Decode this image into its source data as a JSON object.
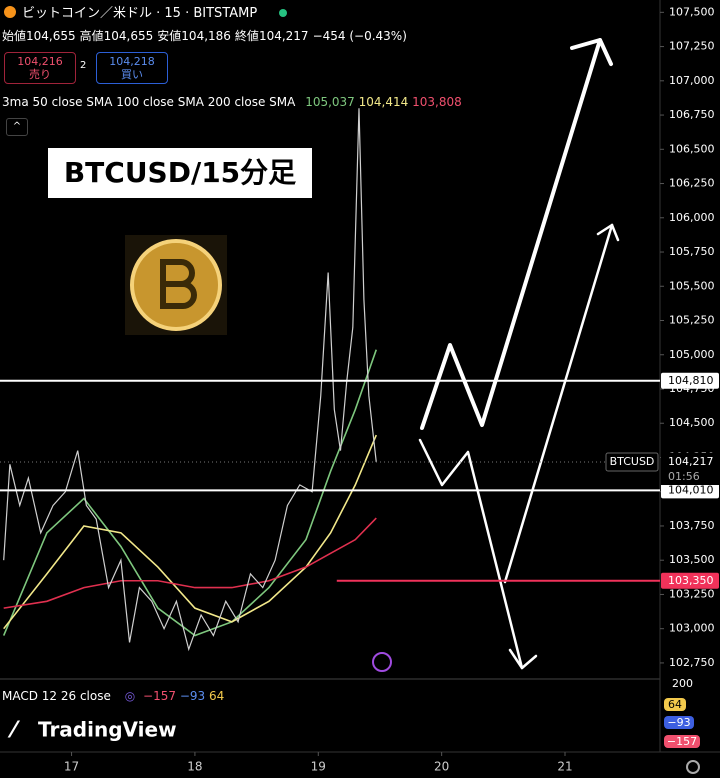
{
  "header": {
    "symbol": "ビットコイン／米ドル · 15 · BITSTAMP",
    "ohlc": [
      {
        "label": "始値",
        "value": "104,655"
      },
      {
        "label": "高値",
        "value": "104,655"
      },
      {
        "label": "安値",
        "value": "104,186"
      },
      {
        "label": "終値",
        "value": "104,217"
      }
    ],
    "change": "−454 (−0.43%)",
    "sell": {
      "price": "104,216",
      "label": "売り"
    },
    "spread": "2",
    "buy": {
      "price": "104,218",
      "label": "買い"
    },
    "indicator": "3ma 50 close SMA 100 close SMA 200 close SMA",
    "indicator_values": [
      "105,037",
      "104,414",
      "103,808"
    ],
    "annotation": "BTCUSD/15分足",
    "macd": {
      "label": "MACD 12 26 close",
      "values": [
        "−157",
        "−93",
        "64"
      ],
      "axis_top": "200"
    },
    "logo": "TradingView"
  },
  "chart_data": {
    "type": "line",
    "x": [
      16.45,
      16.5,
      16.58,
      16.65,
      16.75,
      16.85,
      16.95,
      17.05,
      17.12,
      17.2,
      17.3,
      17.4,
      17.47,
      17.55,
      17.65,
      17.75,
      17.85,
      17.95,
      18.05,
      18.15,
      18.25,
      18.35,
      18.45,
      18.55,
      18.65,
      18.75,
      18.85,
      18.95,
      19.02,
      19.08,
      19.13,
      19.18,
      19.23,
      19.28,
      19.33,
      19.37,
      19.41,
      19.47
    ],
    "values": [
      103500,
      104200,
      103900,
      104100,
      103700,
      103900,
      104000,
      104300,
      103900,
      103800,
      103300,
      103500,
      102900,
      103300,
      103200,
      103000,
      103200,
      102850,
      103100,
      102950,
      103200,
      103050,
      103400,
      103300,
      103500,
      103900,
      104050,
      104000,
      104700,
      105600,
      104600,
      104300,
      104800,
      105200,
      106800,
      105400,
      104700,
      104217
    ],
    "color": "#d0d0d0",
    "series": [
      {
        "name": "SMA 50",
        "color": "#7ec77e",
        "x": [
          16.45,
          16.8,
          17.1,
          17.4,
          17.7,
          18.0,
          18.3,
          18.6,
          18.9,
          19.1,
          19.3,
          19.47
        ],
        "values": [
          102950,
          103700,
          103950,
          103600,
          103150,
          102950,
          103050,
          103300,
          103650,
          104150,
          104600,
          105037
        ]
      },
      {
        "name": "SMA 100",
        "color": "#f2e88a",
        "x": [
          16.45,
          16.8,
          17.1,
          17.4,
          17.7,
          18.0,
          18.3,
          18.6,
          18.9,
          19.1,
          19.3,
          19.47
        ],
        "values": [
          103000,
          103400,
          103750,
          103700,
          103450,
          103150,
          103050,
          103200,
          103450,
          103700,
          104050,
          104414
        ]
      },
      {
        "name": "SMA 200",
        "color": "#e0304f",
        "x": [
          16.45,
          16.8,
          17.1,
          17.4,
          17.7,
          18.0,
          18.3,
          18.6,
          18.9,
          19.1,
          19.3,
          19.47
        ],
        "values": [
          103150,
          103200,
          103300,
          103350,
          103350,
          103300,
          103300,
          103350,
          103450,
          103550,
          103650,
          103808
        ]
      }
    ],
    "levels": [
      {
        "value": 104810,
        "label": "104,810",
        "color": "#ffffff",
        "from": 16.42
      },
      {
        "value": 104010,
        "label": "104,010",
        "color": "#ffffff",
        "from": 16.42
      },
      {
        "value": 103350,
        "label": "103,350",
        "color": "#f0325a",
        "from": 19.15
      }
    ],
    "current": {
      "symbol": "BTCUSD",
      "value": 104217,
      "label": "104,217",
      "timer": "01:56"
    },
    "xlim": [
      16.42,
      21.77
    ],
    "xticks": [
      17,
      18,
      19,
      20,
      21
    ],
    "ylim": [
      102640,
      107590
    ],
    "yticks": [
      {
        "value": 107500,
        "label": "107,500"
      },
      {
        "value": 107250,
        "label": "107,250"
      },
      {
        "value": 107000,
        "label": "107,000"
      },
      {
        "value": 106750,
        "label": "106,750"
      },
      {
        "value": 106500,
        "label": "106,500"
      },
      {
        "value": 106250,
        "label": "106,250"
      },
      {
        "value": 106000,
        "label": "106,000"
      },
      {
        "value": 105750,
        "label": "105,750"
      },
      {
        "value": 105500,
        "label": "105,500"
      },
      {
        "value": 105250,
        "label": "105,250"
      },
      {
        "value": 105000,
        "label": "105,000"
      },
      {
        "value": 104750,
        "label": "104,750"
      },
      {
        "value": 104500,
        "label": "104,500"
      },
      {
        "value": 104250,
        "label": "104,250"
      },
      {
        "value": 104000,
        "label": "104,000"
      },
      {
        "value": 103750,
        "label": "103,750"
      },
      {
        "value": 103500,
        "label": "103,500"
      },
      {
        "value": 103250,
        "label": "103,250"
      },
      {
        "value": 103000,
        "label": "103,000"
      },
      {
        "value": 102750,
        "label": "102,750"
      }
    ],
    "grid": false
  }
}
